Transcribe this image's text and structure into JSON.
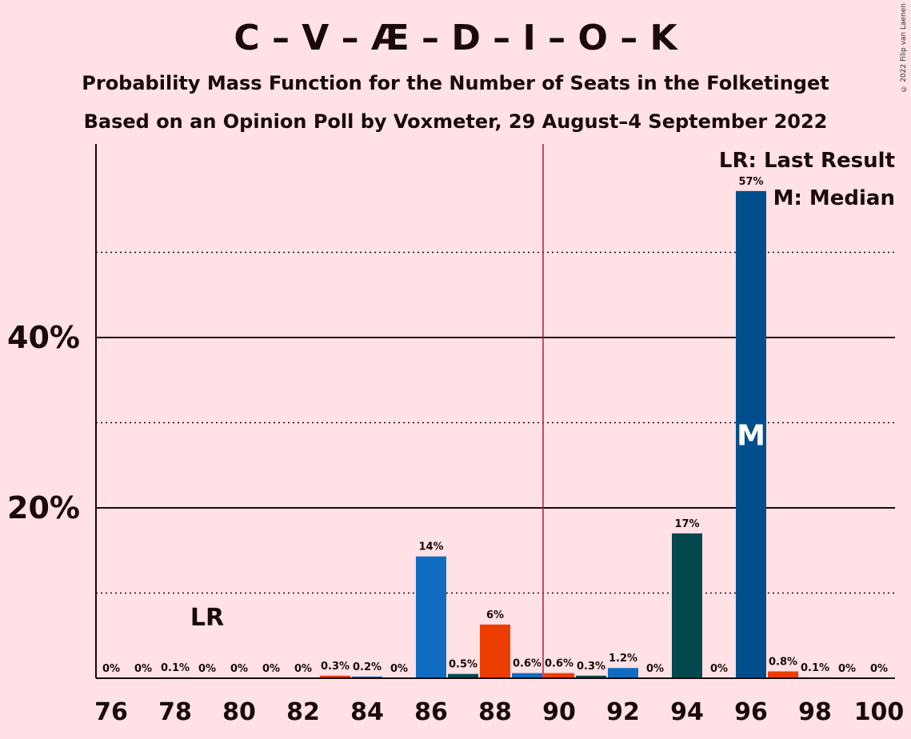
{
  "header": {
    "title": "C – V – Æ – D – I – O – K",
    "subtitle1": "Probability Mass Function for the Number of Seats in the Folketinget",
    "subtitle2": "Based on an Opinion Poll by Voxmeter, 29 August–4 September 2022",
    "copyright": "© 2022 Filip van Laenen"
  },
  "legend": {
    "lr": "LR: Last Result",
    "m": "M: Median"
  },
  "markers": {
    "lr_text": "LR",
    "m_text": "M"
  },
  "chart_data": {
    "type": "bar",
    "title": "C – V – Æ – D – I – O – K",
    "xlabel": "",
    "ylabel": "",
    "ylim": [
      0,
      60
    ],
    "yticks_labeled": [
      "20%",
      "40%"
    ],
    "xticks": [
      "76",
      "78",
      "80",
      "82",
      "84",
      "86",
      "88",
      "90",
      "92",
      "94",
      "96",
      "98",
      "100"
    ],
    "x": [
      76,
      77,
      78,
      79,
      80,
      81,
      82,
      83,
      84,
      85,
      86,
      87,
      88,
      89,
      90,
      91,
      92,
      93,
      94,
      95,
      96,
      97,
      98,
      99,
      100
    ],
    "values": [
      0,
      0,
      0.1,
      0,
      0,
      0,
      0,
      0.3,
      0.2,
      0,
      14.3,
      0.5,
      6.3,
      0.6,
      0.6,
      0.3,
      1.2,
      0,
      17,
      0,
      57.2,
      0.8,
      0.1,
      0,
      0
    ],
    "labels": [
      "0%",
      "0%",
      "0.1%",
      "0%",
      "0%",
      "0%",
      "0%",
      "0.3%",
      "0.2%",
      "0%",
      "14%",
      "0.5%",
      "6%",
      "0.6%",
      "0.6%",
      "0.3%",
      "1.2%",
      "0%",
      "17%",
      "0%",
      "57%",
      "0.8%",
      "0.1%",
      "0%",
      "0%"
    ],
    "colors": [
      "#0F6CC1",
      "#03484C",
      "#EC3E00",
      "#0F6CC1",
      "#EC3E00",
      "#03484C",
      "#0F6CC1",
      "#EC3E00",
      "#0F6CC1",
      "#03484C",
      "#0F6CC1",
      "#03484C",
      "#EC3E00",
      "#0F6CC1",
      "#EC3E00",
      "#03484C",
      "#0F6CC1",
      "#03484C",
      "#03484C",
      "#03484C",
      "#004F8C",
      "#EC3E00",
      "#0F6CC1",
      "#03484C",
      "#0F6CC1"
    ],
    "last_result": 79,
    "median": 96,
    "majority_line": 89.5,
    "majority_color": "#C0143C"
  }
}
